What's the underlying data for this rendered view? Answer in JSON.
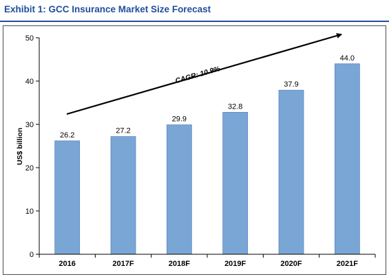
{
  "exhibit": {
    "title": "Exhibit 1:  GCC Insurance Market Size Forecast"
  },
  "chart_data": {
    "type": "bar",
    "title": "",
    "xlabel": "",
    "ylabel": "US$ billion",
    "categories": [
      "2016",
      "2017F",
      "2018F",
      "2019F",
      "2020F",
      "2021F"
    ],
    "values": [
      26.2,
      27.2,
      29.9,
      32.8,
      37.9,
      44.0
    ],
    "data_labels": [
      "26.2",
      "27.2",
      "29.9",
      "32.8",
      "37.9",
      "44.0"
    ],
    "ylim": [
      0,
      50
    ],
    "yticks": [
      0,
      10,
      20,
      30,
      40,
      50
    ],
    "grid": false,
    "annotation": {
      "text": "CAGR: 10.9%"
    },
    "bar_color": "#7aa6d6",
    "bar_edge_color": "#5b87bf"
  }
}
